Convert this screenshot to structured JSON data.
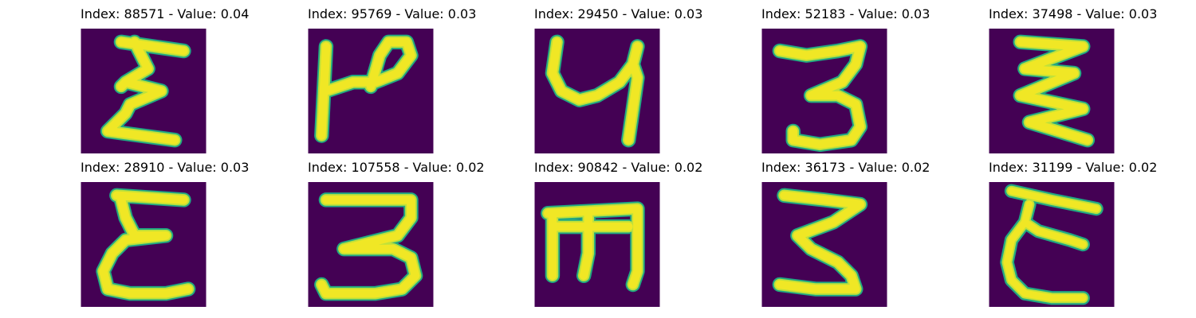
{
  "chart_data": {
    "type": "image_grid",
    "rows": 2,
    "cols": 5,
    "colors": {
      "background": "#440154",
      "stroke_core": "#f0e725",
      "stroke_mid": "#bfe13a",
      "stroke_edge": "#21a883"
    },
    "panels": [
      {
        "title": "Index: 88571 - Value: 0.04",
        "index": 88571,
        "value": 0.04,
        "glyph": "Ɛ-like stacked zigzag"
      },
      {
        "title": "Index: 95769 - Value: 0.03",
        "index": 95769,
        "value": 0.03,
        "glyph": "P-like hook"
      },
      {
        "title": "Index: 29450 - Value: 0.03",
        "index": 29450,
        "value": 0.03,
        "glyph": "y-like curve"
      },
      {
        "title": "Index: 52183 - Value: 0.03",
        "index": 52183,
        "value": 0.03,
        "glyph": "3"
      },
      {
        "title": "Index: 37498 - Value: 0.03",
        "index": 37498,
        "value": 0.03,
        "glyph": "stacked zigzag"
      },
      {
        "title": "Index: 28910 - Value: 0.03",
        "index": 28910,
        "value": 0.03,
        "glyph": "Ɛ-like loops"
      },
      {
        "title": "Index: 107558 - Value: 0.02",
        "index": 107558,
        "value": 0.02,
        "glyph": "3"
      },
      {
        "title": "Index: 90842 - Value: 0.02",
        "index": 90842,
        "value": 0.02,
        "glyph": "Ш-like"
      },
      {
        "title": "Index: 36173 - Value: 0.02",
        "index": 36173,
        "value": 0.02,
        "glyph": "3"
      },
      {
        "title": "Index: 31199 - Value: 0.02",
        "index": 31199,
        "value": 0.02,
        "glyph": "Ɛ-like loops"
      }
    ]
  }
}
